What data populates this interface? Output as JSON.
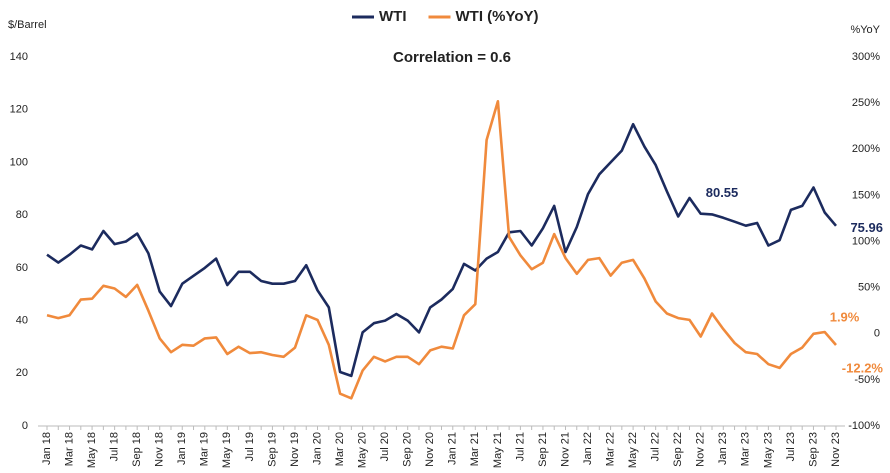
{
  "chart_data": {
    "type": "line",
    "annotation": "Correlation = 0.6",
    "ylabel": "$/Barrel",
    "y2label": "%YoY",
    "categories": [
      "Jan 18",
      null,
      "Mar 18",
      null,
      "May 18",
      null,
      "Jul 18",
      null,
      "Sep 18",
      null,
      "Nov 18",
      null,
      "Jan 19",
      null,
      "Mar 19",
      null,
      "May 19",
      null,
      "Jul 19",
      null,
      "Sep 19",
      null,
      "Nov 19",
      null,
      "Jan 20",
      null,
      "Mar 20",
      null,
      "May 20",
      null,
      "Jul 20",
      null,
      "Sep 20",
      null,
      "Nov 20",
      null,
      "Jan 21",
      null,
      "Mar 21",
      null,
      "May 21",
      null,
      "Jul 21",
      null,
      "Sep 21",
      null,
      "Nov 21",
      null,
      "Jan 22",
      null,
      "Mar 22",
      null,
      "May 22",
      null,
      "Jul 22",
      null,
      "Sep 22",
      null,
      "Nov 22",
      null,
      "Jan 23",
      null,
      "Mar 23",
      null,
      "May 23",
      null,
      "Jul 23",
      null,
      "Sep 23",
      null,
      "Nov 23"
    ],
    "series": [
      {
        "name": "WTI",
        "color": "#1c2b5e",
        "axis": "y",
        "values": [
          65,
          62,
          65,
          68.5,
          67,
          74,
          69,
          70,
          73,
          65.5,
          51,
          45.5,
          54,
          57,
          60,
          63.5,
          53.5,
          58.5,
          58.5,
          55,
          54,
          54,
          55,
          61,
          51.5,
          45,
          20.5,
          19,
          35.5,
          39,
          40,
          42.5,
          40,
          35.5,
          45,
          48,
          52,
          61.5,
          59,
          63.5,
          66,
          73.5,
          74,
          68.5,
          75,
          83.5,
          66,
          75.5,
          88,
          95.5,
          100,
          104.5,
          114.5,
          106,
          99,
          89,
          79.5,
          86.5,
          80.55,
          80.3,
          79,
          77.5,
          76,
          77,
          68.5,
          70.5,
          82,
          83.5,
          90.5,
          81,
          75.96
        ],
        "value_labels": [
          null,
          null,
          null,
          null,
          null,
          null,
          null,
          null,
          null,
          null,
          null,
          null,
          null,
          null,
          null,
          null,
          null,
          null,
          null,
          null,
          null,
          null,
          null,
          null,
          null,
          null,
          null,
          null,
          null,
          null,
          null,
          null,
          null,
          null,
          null,
          null,
          null,
          null,
          null,
          null,
          null,
          null,
          null,
          null,
          null,
          null,
          null,
          null,
          null,
          null,
          null,
          null,
          null,
          null,
          null,
          null,
          null,
          null,
          "80.55",
          null,
          null,
          null,
          null,
          null,
          null,
          null,
          null,
          null,
          null,
          null,
          "75.96"
        ]
      },
      {
        "name": "WTI (%YoY)",
        "color": "#f08a3c",
        "axis": "y2",
        "values": [
          20,
          17,
          20,
          37,
          38,
          52,
          49,
          40,
          53,
          25,
          -5,
          -20,
          -12,
          -13,
          -5,
          -4,
          -22,
          -14,
          -21,
          -20,
          -23,
          -25,
          -15,
          20,
          15,
          -12,
          -65,
          -70,
          -40,
          -25,
          -30,
          -25,
          -25,
          -33,
          -18,
          -14,
          -16,
          20,
          32,
          210,
          252,
          105,
          85,
          70,
          77,
          108,
          82,
          65,
          80,
          82,
          63,
          77,
          80,
          60,
          35,
          22,
          17,
          15,
          -3,
          22,
          5,
          -10,
          -20,
          -22,
          -33,
          -37,
          -22,
          -15,
          0,
          1.9,
          -12.2
        ],
        "value_labels": [
          null,
          null,
          null,
          null,
          null,
          null,
          null,
          null,
          null,
          null,
          null,
          null,
          null,
          null,
          null,
          null,
          null,
          null,
          null,
          null,
          null,
          null,
          null,
          null,
          null,
          null,
          null,
          null,
          null,
          null,
          null,
          null,
          null,
          null,
          null,
          null,
          null,
          null,
          null,
          null,
          null,
          null,
          null,
          null,
          null,
          null,
          null,
          null,
          null,
          null,
          null,
          null,
          null,
          null,
          null,
          null,
          null,
          null,
          null,
          null,
          null,
          null,
          null,
          null,
          null,
          null,
          null,
          null,
          null,
          "1.9%",
          "-12.2%"
        ]
      }
    ],
    "ylim": [
      0,
      140
    ],
    "yticks": [
      0,
      20,
      40,
      60,
      80,
      100,
      120,
      140
    ],
    "y2lim": [
      -100,
      300
    ],
    "y2ticks": [
      {
        "value": -100,
        "label": "-100%"
      },
      {
        "value": -50,
        "label": "-50%"
      },
      0,
      {
        "value": 50,
        "label": "50%"
      },
      {
        "value": 100,
        "label": "100%"
      },
      {
        "value": 150,
        "label": "150%"
      },
      {
        "value": 200,
        "label": "200%"
      },
      {
        "value": 250,
        "label": "250%"
      },
      {
        "value": 300,
        "label": "300%"
      }
    ],
    "legend": "top"
  }
}
